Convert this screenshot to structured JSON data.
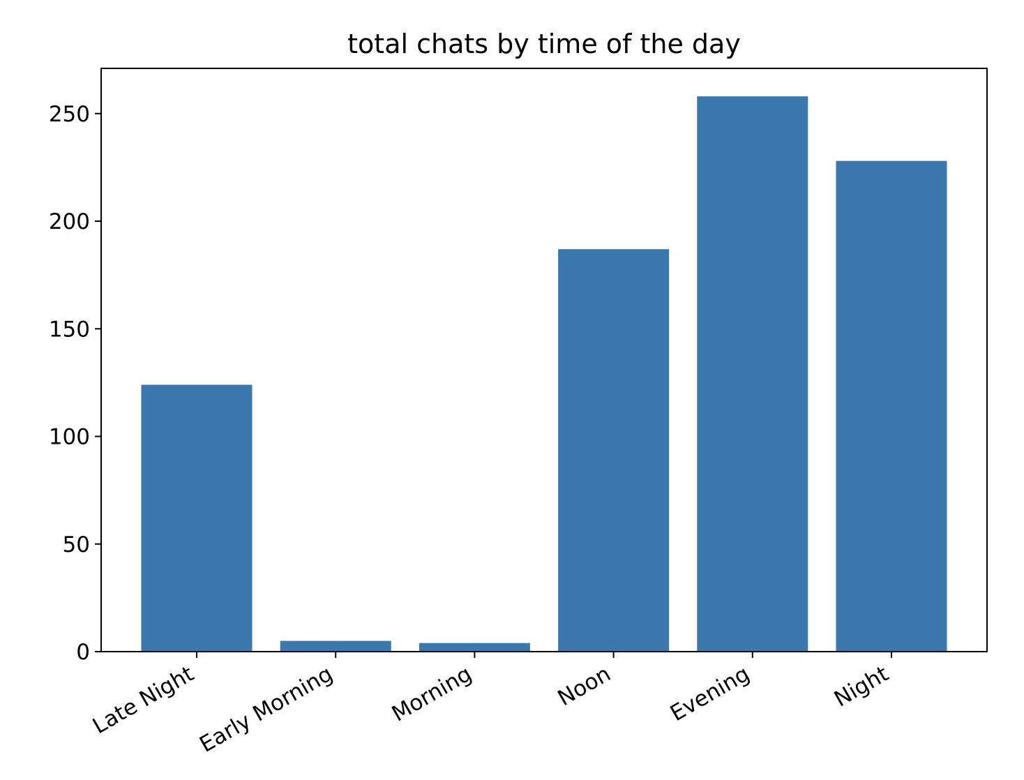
{
  "chart_data": {
    "type": "bar",
    "title": "total chats by time of the day",
    "xlabel": "",
    "ylabel": "",
    "categories": [
      "Late Night",
      "Early Morning",
      "Morning",
      "Noon",
      "Evening",
      "Night"
    ],
    "values": [
      124,
      5,
      4,
      187,
      258,
      228
    ],
    "ylim": [
      0,
      271
    ],
    "yticks": [
      0,
      50,
      100,
      150,
      200,
      250
    ],
    "bar_color": "#3a78ae",
    "grid": false,
    "legend": "none",
    "xtick_rotation": "30 degrees"
  }
}
